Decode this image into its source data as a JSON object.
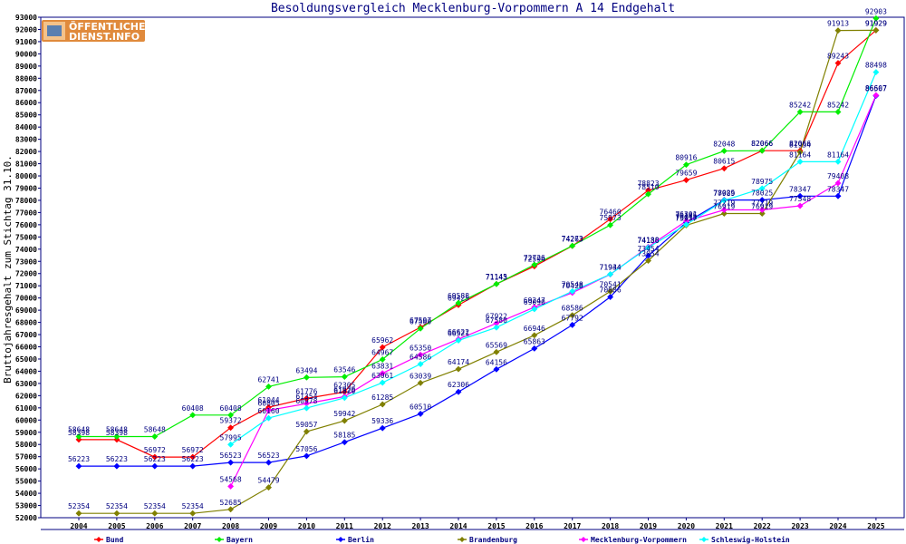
{
  "logo": {
    "line1": "ÖFFENTLICHER",
    "line2": "DIENST.INFO"
  },
  "chart_data": {
    "type": "line",
    "title": "Besoldungsvergleich Mecklenburg-Vorpommern A 14 Endgehalt",
    "xlabel": "",
    "ylabel": "Bruttojahresgehalt zum Stichtag 31.10.",
    "ylim": [
      52000,
      93000
    ],
    "y_step": 1000,
    "grid": false,
    "legend_position": "bottom",
    "x": [
      "2004",
      "2005",
      "2006",
      "2007",
      "2008",
      "2009",
      "2010",
      "2011",
      "2012",
      "2013",
      "2014",
      "2015",
      "2016",
      "2017",
      "2018",
      "2019",
      "2020",
      "2021",
      "2022",
      "2023",
      "2024",
      "2025"
    ],
    "series": [
      {
        "name": "Bund",
        "color": "#ff0000",
        "values": [
          58398,
          58398,
          56972,
          56972,
          59372,
          61044,
          61776,
          62305,
          65962,
          67597,
          69425,
          71145,
          72594,
          74263,
          76460,
          78823,
          79659,
          80615,
          82066,
          82066,
          89243,
          91929
        ]
      },
      {
        "name": "Bayern",
        "color": "#00ee00",
        "values": [
          58648,
          58648,
          58648,
          60408,
          60408,
          62741,
          63494,
          63546,
          64967,
          67500,
          69588,
          71143,
          72726,
          74273,
          75973,
          78510,
          80916,
          82048,
          82066,
          85242,
          85242,
          92903
        ]
      },
      {
        "name": "Berlin",
        "color": "#0000ff",
        "values": [
          56223,
          56223,
          56223,
          56223,
          56523,
          56523,
          57056,
          58185,
          59336,
          60510,
          62306,
          64156,
          65863,
          67792,
          70086,
          73454,
          76185,
          78025,
          78025,
          78347,
          78347,
          86567
        ]
      },
      {
        "name": "Brandenburg",
        "color": "#808000",
        "values": [
          52354,
          52354,
          52354,
          52354,
          52685,
          54479,
          59057,
          59942,
          61285,
          63039,
          64174,
          65569,
          66946,
          68586,
          70541,
          73054,
          75957,
          76919,
          76919,
          81954,
          91913,
          91929
        ]
      },
      {
        "name": "Mecklenburg-Vorpommern",
        "color": "#ff00ff",
        "values": [
          null,
          null,
          null,
          null,
          54568,
          60805,
          61354,
          61920,
          63831,
          65350,
          66622,
          67922,
          69247,
          70428,
          71934,
          74188,
          76301,
          77219,
          77219,
          77548,
          79408,
          86607
        ]
      },
      {
        "name": "Schleswig-Holstein",
        "color": "#00ffff",
        "values": [
          null,
          null,
          null,
          null,
          57995,
          60160,
          60978,
          61820,
          63061,
          64586,
          66521,
          67580,
          69090,
          70548,
          71944,
          74136,
          76015,
          77989,
          78975,
          81164,
          81164,
          88498
        ]
      }
    ]
  }
}
